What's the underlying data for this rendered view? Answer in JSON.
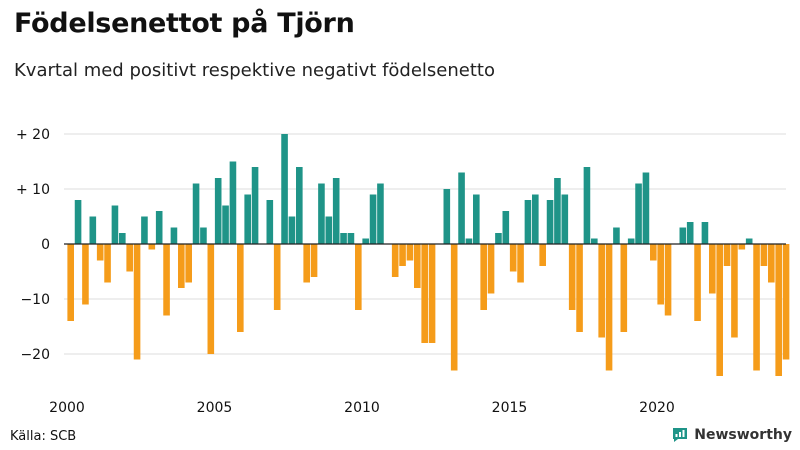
{
  "chart_data": {
    "type": "bar",
    "title": "Födelsenettot på Tjörn",
    "subtitle": "Kvartal med positivt respektive negativt födelsenetto",
    "xlabel": "",
    "ylabel": "",
    "ylim": [
      -25,
      22
    ],
    "y_ticks": [
      {
        "value": 20,
        "label": "+ 20"
      },
      {
        "value": 10,
        "label": "+ 10"
      },
      {
        "value": 0,
        "label": "0"
      },
      {
        "value": -10,
        "label": "−10"
      },
      {
        "value": -20,
        "label": "−20"
      }
    ],
    "x_ticks": [
      {
        "year": 2000,
        "label": "2000"
      },
      {
        "year": 2005,
        "label": "2005"
      },
      {
        "year": 2010,
        "label": "2010"
      },
      {
        "year": 2015,
        "label": "2015"
      },
      {
        "year": 2020,
        "label": "2020"
      }
    ],
    "start": "2000 Q1",
    "period": "quarter",
    "positive_color": "#1f9488",
    "negative_color": "#f59c1a",
    "values": [
      -14,
      8,
      -11,
      5,
      -3,
      -7,
      7,
      2,
      -5,
      -21,
      5,
      -1,
      6,
      -13,
      3,
      -8,
      -7,
      11,
      3,
      -20,
      12,
      7,
      15,
      -16,
      9,
      14,
      0,
      8,
      -12,
      20,
      5,
      14,
      -7,
      -6,
      11,
      5,
      12,
      2,
      2,
      -12,
      1,
      9,
      11,
      0,
      -6,
      -4,
      -3,
      -8,
      -18,
      -18,
      0,
      10,
      -23,
      13,
      1,
      9,
      -12,
      -9,
      2,
      6,
      -5,
      -7,
      8,
      9,
      -4,
      8,
      12,
      9,
      -12,
      -16,
      14,
      1,
      -17,
      -23,
      3,
      -16,
      1,
      11,
      13,
      -3,
      -11,
      -13,
      0,
      3,
      4,
      -14,
      4,
      -9,
      -24,
      -4,
      -17,
      -1,
      1,
      -23,
      -4,
      -7,
      -24,
      -21
    ]
  },
  "footer": {
    "source": "Källa: SCB",
    "brand": "Newsworthy",
    "brand_color": "#1f9488"
  }
}
